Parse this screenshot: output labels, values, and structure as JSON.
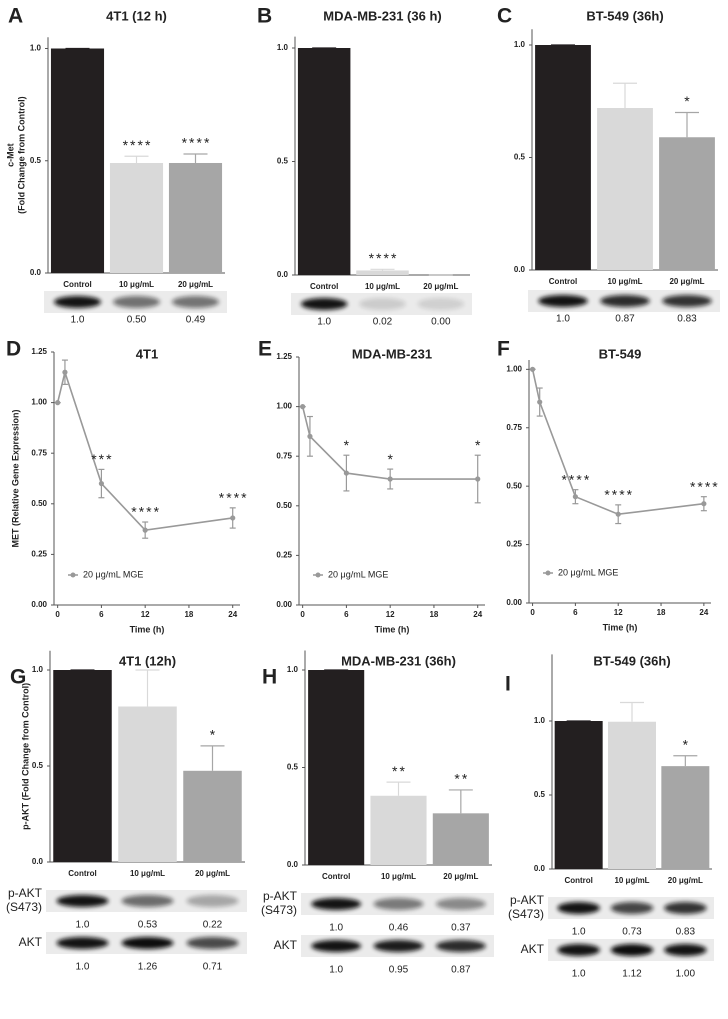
{
  "chart_data": [
    {
      "panel": "A",
      "type": "bar",
      "title": "4T1 (12 h)",
      "ylabel": [
        "c-Met",
        "(Fold Change from Control)"
      ],
      "categories": [
        "Control",
        "10 μg/mL",
        "20 μg/mL"
      ],
      "values": [
        1.0,
        0.49,
        0.49
      ],
      "errors": [
        0,
        0.03,
        0.04
      ],
      "colors": [
        "#231f20",
        "#d9d9d9",
        "#a6a6a6"
      ],
      "annotations": [
        null,
        "****",
        "****"
      ],
      "ylim": [
        0,
        1.05
      ],
      "yticks": [
        {
          "value": 0,
          "label": "0.0"
        },
        {
          "value": 0.5,
          "label": "0.5"
        },
        {
          "value": 1,
          "label": "1.0"
        }
      ],
      "blots": [
        {
          "values": [
            "1.0",
            "0.50",
            "0.49"
          ]
        }
      ]
    },
    {
      "panel": "B",
      "type": "bar",
      "title": "MDA-MB-231 (36 h)",
      "categories": [
        "Control",
        "10 μg/mL",
        "20 μg/mL"
      ],
      "values": [
        1.0,
        0.02,
        0.0
      ],
      "errors": [
        0,
        0.005,
        0
      ],
      "colors": [
        "#231f20",
        "#d9d9d9",
        "#a6a6a6"
      ],
      "annotations": [
        null,
        "****",
        null
      ],
      "ylim": [
        0,
        1.05
      ],
      "yticks": [
        {
          "value": 0,
          "label": "0.0"
        },
        {
          "value": 0.5,
          "label": "0.5"
        },
        {
          "value": 1,
          "label": "1.0"
        }
      ],
      "blots": [
        {
          "values": [
            "1.0",
            "0.02",
            "0.00"
          ]
        }
      ]
    },
    {
      "panel": "C",
      "type": "bar",
      "title": "BT-549 (36h)",
      "categories": [
        "Control",
        "10 μg/mL",
        "20 μg/mL"
      ],
      "values": [
        1.0,
        0.72,
        0.59
      ],
      "errors": [
        0,
        0.11,
        0.11
      ],
      "colors": [
        "#231f20",
        "#d9d9d9",
        "#a6a6a6"
      ],
      "annotations": [
        null,
        null,
        "*"
      ],
      "ylim": [
        0,
        1.07
      ],
      "yticks": [
        {
          "value": 0,
          "label": "0.0"
        },
        {
          "value": 0.5,
          "label": "0.5"
        },
        {
          "value": 1,
          "label": "1.0"
        }
      ],
      "blots": [
        {
          "values": [
            "1.0",
            "0.87",
            "0.83"
          ]
        }
      ]
    },
    {
      "panel": "D",
      "type": "line",
      "title": "4T1",
      "ylabel": [
        "MET (Relative Gene Expression)"
      ],
      "xlabel": "Time (h)",
      "x": [
        0,
        1,
        6,
        12,
        24
      ],
      "series": [
        {
          "name": "20 μg/mL MGE",
          "color": "#999999",
          "values": [
            1.0,
            1.15,
            0.6,
            0.37,
            0.43
          ],
          "errors": [
            0,
            0.06,
            0.07,
            0.04,
            0.05
          ]
        }
      ],
      "annotations": [
        null,
        null,
        "***",
        "****",
        "****"
      ],
      "legend": "lower-left",
      "xlim": [
        -0.5,
        25
      ],
      "xticks": [
        0,
        6,
        12,
        18,
        24
      ],
      "ylim": [
        0,
        1.25
      ],
      "yticks": [
        {
          "value": 0,
          "label": "0.00"
        },
        {
          "value": 0.25,
          "label": "0.25"
        },
        {
          "value": 0.5,
          "label": "0.50"
        },
        {
          "value": 0.75,
          "label": "0.75"
        },
        {
          "value": 1,
          "label": "1.00"
        },
        {
          "value": 1.25,
          "label": "1.25"
        }
      ]
    },
    {
      "panel": "E",
      "type": "line",
      "title": "MDA-MB-231",
      "xlabel": "Time (h)",
      "x": [
        0,
        1,
        6,
        12,
        24
      ],
      "series": [
        {
          "name": "20 μg/mL MGE",
          "color": "#999999",
          "values": [
            1.0,
            0.85,
            0.665,
            0.635,
            0.635
          ],
          "errors": [
            0,
            0.1,
            0.09,
            0.05,
            0.12
          ]
        }
      ],
      "annotations": [
        null,
        null,
        "*",
        "*",
        "*"
      ],
      "legend": "lower-left",
      "xlim": [
        -0.5,
        25
      ],
      "xticks": [
        0,
        6,
        12,
        18,
        24
      ],
      "ylim": [
        0,
        1.25
      ],
      "yticks": [
        {
          "value": 0,
          "label": "0.00"
        },
        {
          "value": 0.25,
          "label": "0.25"
        },
        {
          "value": 0.5,
          "label": "0.50"
        },
        {
          "value": 0.75,
          "label": "0.75"
        },
        {
          "value": 1,
          "label": "1.00"
        },
        {
          "value": 1.25,
          "label": "1.25"
        }
      ]
    },
    {
      "panel": "F",
      "type": "line",
      "title": "BT-549",
      "xlabel": "Time (h)",
      "x": [
        0,
        1,
        6,
        12,
        24
      ],
      "series": [
        {
          "name": "20 μg/mL MGE",
          "color": "#999999",
          "values": [
            1.0,
            0.86,
            0.455,
            0.38,
            0.425
          ],
          "errors": [
            0,
            0.06,
            0.03,
            0.04,
            0.03
          ]
        }
      ],
      "annotations": [
        null,
        null,
        "****",
        "****",
        "****"
      ],
      "legend": "lower-left",
      "xlim": [
        -0.5,
        25
      ],
      "xticks": [
        0,
        6,
        12,
        18,
        24
      ],
      "ylim": [
        0,
        1.04
      ],
      "yticks": [
        {
          "value": 0,
          "label": "0.00"
        },
        {
          "value": 0.25,
          "label": "0.25"
        },
        {
          "value": 0.5,
          "label": "0.50"
        },
        {
          "value": 0.75,
          "label": "0.75"
        },
        {
          "value": 1,
          "label": "1.00"
        }
      ]
    },
    {
      "panel": "G",
      "type": "bar",
      "title": "4T1 (12h)",
      "ylabel": [
        "p-AKT (Fold Change from Control)"
      ],
      "categories": [
        "Control",
        "10 μg/mL",
        "20 μg/mL"
      ],
      "values": [
        1.0,
        0.81,
        0.475
      ],
      "errors": [
        0,
        0.19,
        0.13
      ],
      "colors": [
        "#231f20",
        "#d9d9d9",
        "#a6a6a6"
      ],
      "annotations": [
        null,
        null,
        "*"
      ],
      "ylim": [
        0,
        1.1
      ],
      "yticks": [
        {
          "value": 0,
          "label": "0.0"
        },
        {
          "value": 0.5,
          "label": "0.5"
        },
        {
          "value": 1,
          "label": "1.0"
        }
      ],
      "blots": [
        {
          "label": [
            "p-AKT",
            "(S473)"
          ],
          "values": [
            "1.0",
            "0.53",
            "0.22"
          ]
        },
        {
          "label": [
            "AKT"
          ],
          "values": [
            "1.0",
            "1.26",
            "0.71"
          ]
        }
      ]
    },
    {
      "panel": "H",
      "type": "bar",
      "title": "MDA-MB-231 (36h)",
      "categories": [
        "Control",
        "10 μg/mL",
        "20 μg/mL"
      ],
      "values": [
        1.0,
        0.355,
        0.265
      ],
      "errors": [
        0,
        0.07,
        0.12
      ],
      "colors": [
        "#231f20",
        "#d9d9d9",
        "#a6a6a6"
      ],
      "annotations": [
        null,
        "**",
        "**"
      ],
      "ylim": [
        0,
        1.1
      ],
      "yticks": [
        {
          "value": 0,
          "label": "0.0"
        },
        {
          "value": 0.5,
          "label": "0.5"
        },
        {
          "value": 1,
          "label": "1.0"
        }
      ],
      "blots": [
        {
          "label": [
            "p-AKT",
            "(S473)"
          ],
          "values": [
            "1.0",
            "0.46",
            "0.37"
          ]
        },
        {
          "label": [
            "AKT"
          ],
          "values": [
            "1.0",
            "0.95",
            "0.87"
          ]
        }
      ]
    },
    {
      "panel": "I",
      "type": "bar",
      "title": "BT-549 (36h)",
      "categories": [
        "Control",
        "10 μg/mL",
        "20 μg/mL"
      ],
      "values": [
        1.0,
        0.995,
        0.695
      ],
      "errors": [
        0,
        0.13,
        0.07
      ],
      "colors": [
        "#231f20",
        "#d9d9d9",
        "#a6a6a6"
      ],
      "annotations": [
        null,
        null,
        "*"
      ],
      "ylim": [
        0,
        1.45
      ],
      "yticks": [
        {
          "value": 0,
          "label": "0.0"
        },
        {
          "value": 0.5,
          "label": "0.5"
        },
        {
          "value": 1,
          "label": "1.0"
        }
      ],
      "blots": [
        {
          "label": [
            "p-AKT",
            "(S473)"
          ],
          "values": [
            "1.0",
            "0.73",
            "0.83"
          ]
        },
        {
          "label": [
            "AKT"
          ],
          "values": [
            "1.0",
            "1.12",
            "1.00"
          ]
        }
      ]
    }
  ]
}
